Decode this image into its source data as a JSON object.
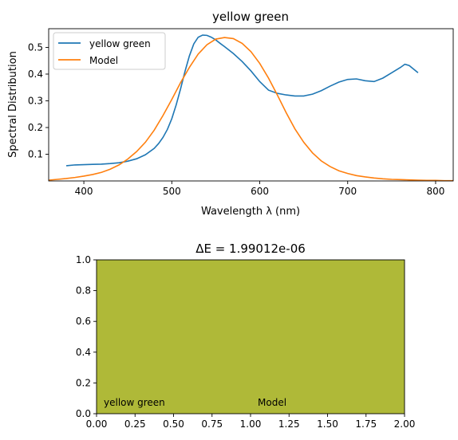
{
  "chart_data": [
    {
      "type": "line",
      "title": "yellow green",
      "xlabel": "Wavelength λ (nm)",
      "ylabel": "Spectral Distribution",
      "xlim": [
        360,
        820
      ],
      "ylim": [
        0.0,
        0.57
      ],
      "xticks": [
        400,
        500,
        600,
        700,
        800
      ],
      "yticks": [
        0.1,
        0.2,
        0.3,
        0.4,
        0.5
      ],
      "grid": false,
      "legend_position": "top-left",
      "series": [
        {
          "name": "yellow green",
          "color": "#1f77b4",
          "x": [
            380,
            390,
            400,
            410,
            420,
            430,
            440,
            450,
            460,
            470,
            480,
            485,
            490,
            495,
            500,
            505,
            510,
            515,
            520,
            525,
            530,
            535,
            540,
            545,
            550,
            555,
            560,
            570,
            580,
            590,
            600,
            610,
            620,
            630,
            640,
            650,
            660,
            670,
            680,
            690,
            700,
            710,
            720,
            730,
            740,
            750,
            760,
            765,
            770,
            780
          ],
          "values": [
            0.057,
            0.06,
            0.061,
            0.062,
            0.063,
            0.065,
            0.068,
            0.074,
            0.083,
            0.098,
            0.122,
            0.14,
            0.163,
            0.193,
            0.233,
            0.285,
            0.345,
            0.41,
            0.468,
            0.513,
            0.538,
            0.546,
            0.545,
            0.538,
            0.528,
            0.515,
            0.503,
            0.477,
            0.447,
            0.412,
            0.372,
            0.34,
            0.328,
            0.322,
            0.318,
            0.318,
            0.325,
            0.338,
            0.355,
            0.37,
            0.38,
            0.382,
            0.375,
            0.372,
            0.385,
            0.405,
            0.425,
            0.437,
            0.432,
            0.405
          ]
        },
        {
          "name": "Model",
          "color": "#ff7f0e",
          "x": [
            360,
            370,
            380,
            390,
            400,
            410,
            420,
            430,
            440,
            450,
            460,
            470,
            480,
            490,
            500,
            510,
            520,
            530,
            540,
            550,
            560,
            570,
            580,
            590,
            600,
            610,
            620,
            630,
            640,
            650,
            660,
            670,
            680,
            690,
            700,
            710,
            720,
            730,
            740,
            750,
            760,
            770,
            780,
            790,
            800,
            810,
            820
          ],
          "values": [
            0.003,
            0.006,
            0.009,
            0.013,
            0.018,
            0.024,
            0.032,
            0.044,
            0.06,
            0.082,
            0.11,
            0.145,
            0.19,
            0.245,
            0.305,
            0.368,
            0.425,
            0.475,
            0.51,
            0.531,
            0.537,
            0.533,
            0.515,
            0.484,
            0.44,
            0.385,
            0.322,
            0.256,
            0.195,
            0.145,
            0.105,
            0.075,
            0.054,
            0.038,
            0.028,
            0.02,
            0.015,
            0.011,
            0.008,
            0.006,
            0.005,
            0.004,
            0.003,
            0.002,
            0.002,
            0.001,
            0.001
          ]
        }
      ]
    },
    {
      "type": "heatmap",
      "title": "ΔE = 1.99012e-06",
      "xlim": [
        0.0,
        2.0
      ],
      "ylim": [
        0.0,
        1.0
      ],
      "xticks": [
        "0.00",
        "0.25",
        "0.50",
        "0.75",
        "1.00",
        "1.25",
        "1.50",
        "1.75",
        "2.00"
      ],
      "yticks": [
        "0.0",
        "0.2",
        "0.4",
        "0.6",
        "0.8",
        "1.0"
      ],
      "swatches": [
        {
          "label": "yellow green",
          "x_range": [
            0,
            1
          ],
          "color": "#afb938"
        },
        {
          "label": "Model",
          "x_range": [
            1,
            2
          ],
          "color": "#afb938"
        }
      ]
    }
  ]
}
